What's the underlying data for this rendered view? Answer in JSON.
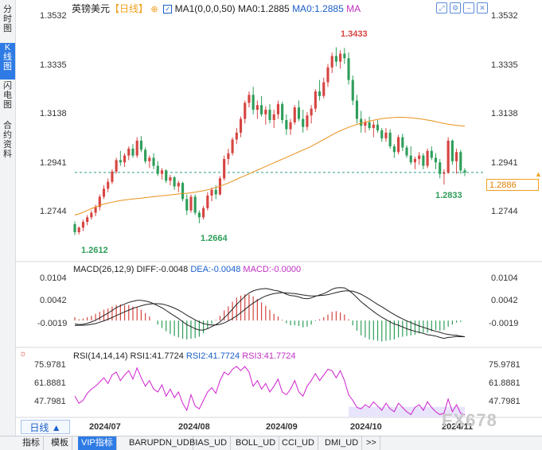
{
  "sidebar": {
    "tabs": [
      {
        "label": "分时图",
        "active": false
      },
      {
        "label": "K线图",
        "active": true
      },
      {
        "label": "闪电图",
        "active": false
      },
      {
        "label": "合约资料",
        "active": false
      }
    ]
  },
  "header": {
    "symbol": "英镑美元",
    "period": "【日线】",
    "period_icon": "circle-plus-icon",
    "ma_checkbox_icon": "checked-box-icon",
    "ma1_label": "MA1(0,0,0,50)",
    "ma0_label": "MA0:1.2885",
    "ma0_value_label": "MA0:1.2885",
    "ma_label": "MA",
    "icons": [
      "expand-icon",
      "settings-icon",
      "minimize-icon",
      "close-icon"
    ]
  },
  "main_chart": {
    "y_ticks": [
      "1.3532",
      "1.3335",
      "1.3138",
      "1.2941",
      "1.2744"
    ],
    "annotations": {
      "high": "1.3433",
      "low1": "1.2612",
      "low2": "1.2664",
      "low3": "1.2833"
    },
    "current_price": "1.2886"
  },
  "macd": {
    "label": "MACD(26,12,9)",
    "diff": "DIFF:-0.0048",
    "dea": "DEA:-0.0048",
    "macd": "MACD:-0.0000",
    "y_ticks": [
      "0.0104",
      "0.0042",
      "-0.0019"
    ]
  },
  "rsi": {
    "label": "RSI(14,14,14)",
    "rsi1": "RSI1:41.7724",
    "rsi2": "RSI2:41.7724",
    "rsi3": "RSI3:41.7724",
    "y_ticks": [
      "75.9781",
      "61.8881",
      "47.7981"
    ]
  },
  "x_ticks": [
    "2024/07",
    "2024/08",
    "2024/09",
    "2024/10",
    "2024/11"
  ],
  "period_button": "日线 ▲",
  "watermark": "FX678",
  "bottom_tabs": [
    {
      "label": "指标",
      "active": false
    },
    {
      "label": "模板",
      "active": false
    },
    {
      "label": "VIP指标",
      "active": true
    },
    {
      "label": "BARUPDN_UD",
      "active": false
    },
    {
      "label": "BIAS_UD",
      "active": false
    },
    {
      "label": "BOLL_UD",
      "active": false
    },
    {
      "label": "CCI_UD",
      "active": false
    },
    {
      "label": "DMI_UD",
      "active": false
    },
    {
      "label": ">>",
      "active": false
    }
  ],
  "colors": {
    "up": "#d64541",
    "down": "#2e9e5a",
    "ma": "#e8901a",
    "rsi": "#d020d0",
    "macd_diff": "#222222",
    "macd_dea": "#222222"
  },
  "chart_data": {
    "type": "candlestick",
    "title": "英镑美元【日线】",
    "ylim": [
      1.258,
      1.357
    ],
    "ohlc": [
      [
        1.266,
        1.2672,
        1.2612,
        1.2625
      ],
      [
        1.2625,
        1.265,
        1.2615,
        1.2645
      ],
      [
        1.2645,
        1.268,
        1.263,
        1.267
      ],
      [
        1.267,
        1.27,
        1.2655,
        1.269
      ],
      [
        1.269,
        1.272,
        1.268,
        1.271
      ],
      [
        1.271,
        1.2745,
        1.2695,
        1.2735
      ],
      [
        1.2735,
        1.279,
        1.272,
        1.278
      ],
      [
        1.278,
        1.283,
        1.277,
        1.2815
      ],
      [
        1.2815,
        1.286,
        1.28,
        1.2845
      ],
      [
        1.2845,
        1.29,
        1.2835,
        1.289
      ],
      [
        1.289,
        1.295,
        1.288,
        1.294
      ],
      [
        1.294,
        1.298,
        1.2915,
        1.293
      ],
      [
        1.293,
        1.297,
        1.291,
        1.296
      ],
      [
        1.296,
        1.3,
        1.294,
        1.299
      ],
      [
        1.299,
        1.301,
        1.295,
        1.296
      ],
      [
        1.296,
        1.304,
        1.295,
        1.3025
      ],
      [
        1.3025,
        1.3045,
        1.2975,
        1.2985
      ],
      [
        1.2985,
        1.2995,
        1.2925,
        1.2935
      ],
      [
        1.2935,
        1.296,
        1.2905,
        1.295
      ],
      [
        1.295,
        1.297,
        1.29,
        1.2915
      ],
      [
        1.2915,
        1.2935,
        1.287,
        1.288
      ],
      [
        1.288,
        1.2905,
        1.2855,
        1.2895
      ],
      [
        1.2895,
        1.29,
        1.284,
        1.285
      ],
      [
        1.285,
        1.2875,
        1.283,
        1.2865
      ],
      [
        1.2865,
        1.287,
        1.281,
        1.2825
      ],
      [
        1.2825,
        1.285,
        1.28,
        1.284
      ],
      [
        1.284,
        1.2845,
        1.276,
        1.277
      ],
      [
        1.277,
        1.279,
        1.27,
        1.272
      ],
      [
        1.272,
        1.279,
        1.271,
        1.278
      ],
      [
        1.278,
        1.279,
        1.27,
        1.271
      ],
      [
        1.271,
        1.272,
        1.2664,
        1.269
      ],
      [
        1.269,
        1.274,
        1.268,
        1.273
      ],
      [
        1.273,
        1.28,
        1.272,
        1.2785
      ],
      [
        1.2785,
        1.282,
        1.276,
        1.281
      ],
      [
        1.281,
        1.283,
        1.277,
        1.279
      ],
      [
        1.279,
        1.287,
        1.2785,
        1.286
      ],
      [
        1.286,
        1.296,
        1.285,
        1.2945
      ],
      [
        1.2945,
        1.299,
        1.292,
        1.297
      ],
      [
        1.297,
        1.304,
        1.296,
        1.303
      ],
      [
        1.303,
        1.308,
        1.301,
        1.306
      ],
      [
        1.306,
        1.313,
        1.304,
        1.312
      ],
      [
        1.312,
        1.32,
        1.31,
        1.319
      ],
      [
        1.319,
        1.324,
        1.317,
        1.3225
      ],
      [
        1.3225,
        1.326,
        1.314,
        1.316
      ],
      [
        1.316,
        1.32,
        1.312,
        1.318
      ],
      [
        1.318,
        1.322,
        1.313,
        1.314
      ],
      [
        1.314,
        1.3175,
        1.3095,
        1.316
      ],
      [
        1.316,
        1.3185,
        1.31,
        1.3115
      ],
      [
        1.3115,
        1.316,
        1.308,
        1.314
      ],
      [
        1.314,
        1.32,
        1.312,
        1.3185
      ],
      [
        1.3185,
        1.3195,
        1.31,
        1.3115
      ],
      [
        1.3115,
        1.314,
        1.305,
        1.3075
      ],
      [
        1.3075,
        1.312,
        1.305,
        1.3105
      ],
      [
        1.3105,
        1.318,
        1.3095,
        1.317
      ],
      [
        1.317,
        1.32,
        1.311,
        1.312
      ],
      [
        1.312,
        1.316,
        1.306,
        1.3085
      ],
      [
        1.3085,
        1.315,
        1.307,
        1.3135
      ],
      [
        1.3135,
        1.318,
        1.31,
        1.3165
      ],
      [
        1.3165,
        1.325,
        1.315,
        1.324
      ],
      [
        1.324,
        1.329,
        1.32,
        1.322
      ],
      [
        1.322,
        1.33,
        1.321,
        1.328
      ],
      [
        1.328,
        1.336,
        1.326,
        1.3345
      ],
      [
        1.3345,
        1.341,
        1.332,
        1.3395
      ],
      [
        1.3395,
        1.3433,
        1.335,
        1.337
      ],
      [
        1.337,
        1.342,
        1.334,
        1.3405
      ],
      [
        1.3405,
        1.343,
        1.336,
        1.3385
      ],
      [
        1.3385,
        1.341,
        1.327,
        1.329
      ],
      [
        1.329,
        1.331,
        1.318,
        1.32
      ],
      [
        1.32,
        1.3225,
        1.31,
        1.312
      ],
      [
        1.312,
        1.3155,
        1.306,
        1.309
      ],
      [
        1.309,
        1.312,
        1.306,
        1.3105
      ],
      [
        1.3105,
        1.313,
        1.307,
        1.308
      ],
      [
        1.308,
        1.311,
        1.304,
        1.3095
      ],
      [
        1.3095,
        1.3115,
        1.306,
        1.307
      ],
      [
        1.307,
        1.308,
        1.302,
        1.3035
      ],
      [
        1.3035,
        1.308,
        1.302,
        1.306
      ],
      [
        1.306,
        1.3075,
        1.299,
        1.3
      ],
      [
        1.3,
        1.301,
        1.295,
        1.2975
      ],
      [
        1.2975,
        1.305,
        1.2965,
        1.304
      ],
      [
        1.304,
        1.3055,
        1.298,
        1.2995
      ],
      [
        1.2995,
        1.3005,
        1.295,
        1.296
      ],
      [
        1.296,
        1.3,
        1.292,
        1.293
      ],
      [
        1.293,
        1.2955,
        1.29,
        1.2945
      ],
      [
        1.2945,
        1.2975,
        1.292,
        1.296
      ],
      [
        1.296,
        1.297,
        1.29,
        1.2915
      ],
      [
        1.2915,
        1.299,
        1.2905,
        1.298
      ],
      [
        1.298,
        1.3,
        1.294,
        1.295
      ],
      [
        1.295,
        1.297,
        1.29,
        1.293
      ],
      [
        1.293,
        1.2945,
        1.286,
        1.288
      ],
      [
        1.288,
        1.29,
        1.2833,
        1.2885
      ],
      [
        1.2885,
        1.304,
        1.288,
        1.3025
      ],
      [
        1.3025,
        1.303,
        1.292,
        1.2935
      ],
      [
        1.2935,
        1.299,
        1.288,
        1.2975
      ],
      [
        1.2975,
        1.2985,
        1.288,
        1.2895
      ],
      [
        1.2895,
        1.2905,
        1.287,
        1.2886
      ]
    ],
    "ma50": [
      1.27,
      1.2705,
      1.2712,
      1.272,
      1.2728,
      1.2735,
      1.2742,
      1.2748,
      1.2752,
      1.2756,
      1.276,
      1.2763,
      1.2766,
      1.2768,
      1.277,
      1.2772,
      1.2774,
      1.2776,
      1.2778,
      1.278,
      1.2782,
      1.2784,
      1.2786,
      1.2788,
      1.279,
      1.2792,
      1.2794,
      1.2795,
      1.2797,
      1.28,
      1.2803,
      1.2806,
      1.281,
      1.2815,
      1.282,
      1.2826,
      1.2833,
      1.284,
      1.2848,
      1.2856,
      1.2864,
      1.2872,
      1.288,
      1.2888,
      1.2896,
      1.2904,
      1.2912,
      1.292,
      1.2928,
      1.2936,
      1.2944,
      1.2952,
      1.296,
      1.2968,
      1.2976,
      1.2984,
      1.2992,
      1.3,
      1.301,
      1.302,
      1.303,
      1.304,
      1.305,
      1.306,
      1.3068,
      1.3076,
      1.3083,
      1.309,
      1.3096,
      1.3101,
      1.3106,
      1.311,
      1.3114,
      1.3118,
      1.3121,
      1.3123,
      1.3125,
      1.3126,
      1.3127,
      1.3127,
      1.3126,
      1.3125,
      1.3123,
      1.3121,
      1.3118,
      1.3115,
      1.3112,
      1.3108,
      1.3104,
      1.31,
      1.3097,
      1.3094,
      1.3092,
      1.309,
      1.3088
    ],
    "macd_diff": [
      -0.001,
      -0.0012,
      -0.0011,
      -0.0008,
      -0.0004,
      0.0001,
      0.0008,
      0.0015,
      0.0022,
      0.003,
      0.0038,
      0.0044,
      0.0049,
      0.0054,
      0.0057,
      0.006,
      0.006,
      0.0058,
      0.0055,
      0.005,
      0.0044,
      0.0038,
      0.003,
      0.0022,
      0.0014,
      0.0006,
      -0.0003,
      -0.0012,
      -0.0018,
      -0.0024,
      -0.0028,
      -0.0028,
      -0.0024,
      -0.0018,
      -0.0012,
      -0.0004,
      0.0008,
      0.002,
      0.0034,
      0.0048,
      0.006,
      0.0072,
      0.0082,
      0.0088,
      0.0092,
      0.0094,
      0.0095,
      0.0093,
      0.009,
      0.0088,
      0.0084,
      0.0078,
      0.0074,
      0.0073,
      0.007,
      0.0066,
      0.0065,
      0.0067,
      0.0072,
      0.0076,
      0.008,
      0.0086,
      0.0093,
      0.0097,
      0.0098,
      0.0097,
      0.009,
      0.008,
      0.0068,
      0.0056,
      0.0046,
      0.0036,
      0.0027,
      0.0018,
      0.001,
      0.0003,
      -0.0004,
      -0.001,
      -0.0014,
      -0.0019,
      -0.0024,
      -0.0028,
      -0.0032,
      -0.0035,
      -0.0038,
      -0.0042,
      -0.0044,
      -0.0046,
      -0.005,
      -0.0053,
      -0.005,
      -0.0049,
      -0.0047,
      -0.0048,
      -0.0048
    ],
    "macd_dea": [
      -0.0015,
      -0.0014,
      -0.0014,
      -0.0013,
      -0.0011,
      -0.0009,
      -0.0005,
      -0.0001,
      0.0004,
      0.0009,
      0.0015,
      0.002,
      0.0026,
      0.0031,
      0.0036,
      0.004,
      0.0044,
      0.0047,
      0.0049,
      0.005,
      0.005,
      0.0049,
      0.0046,
      0.0042,
      0.0037,
      0.0031,
      0.0024,
      0.0016,
      0.0009,
      0.0002,
      -0.0004,
      -0.0009,
      -0.0012,
      -0.0013,
      -0.0013,
      -0.0011,
      -0.0007,
      -0.0001,
      0.0006,
      0.0014,
      0.0023,
      0.0033,
      0.0043,
      0.0052,
      0.006,
      0.0067,
      0.0073,
      0.0077,
      0.008,
      0.0082,
      0.0083,
      0.0082,
      0.0081,
      0.008,
      0.0078,
      0.0076,
      0.0074,
      0.0073,
      0.0073,
      0.0074,
      0.0075,
      0.0077,
      0.008,
      0.0083,
      0.0086,
      0.0088,
      0.0088,
      0.0087,
      0.0083,
      0.0078,
      0.0071,
      0.0064,
      0.0056,
      0.0048,
      0.0041,
      0.0033,
      0.0025,
      0.0018,
      0.0011,
      0.0005,
      -0.0001,
      -0.0006,
      -0.0011,
      -0.0016,
      -0.002,
      -0.0024,
      -0.0028,
      -0.0032,
      -0.0035,
      -0.0039,
      -0.0041,
      -0.0043,
      -0.0044,
      -0.0046,
      -0.0048
    ],
    "rsi": [
      55,
      50,
      52,
      57,
      60,
      62,
      65,
      68,
      64,
      70,
      72,
      66,
      70,
      73,
      67,
      75,
      68,
      62,
      66,
      60,
      58,
      63,
      55,
      60,
      54,
      58,
      50,
      45,
      56,
      48,
      46,
      52,
      58,
      61,
      57,
      66,
      72,
      70,
      74,
      76,
      73,
      76,
      72,
      62,
      66,
      60,
      64,
      58,
      62,
      67,
      58,
      56,
      60,
      66,
      58,
      55,
      62,
      66,
      71,
      66,
      70,
      74,
      73,
      68,
      73,
      66,
      56,
      52,
      47,
      46,
      49,
      47,
      51,
      48,
      45,
      50,
      46,
      44,
      50,
      47,
      44,
      42,
      47,
      49,
      45,
      51,
      47,
      44,
      42,
      43,
      53,
      44,
      49,
      43,
      41.77
    ],
    "rsi_ylim": [
      40,
      81
    ],
    "macd_ylim": [
      -0.0068,
      0.0135
    ],
    "x_ticks": [
      "2024/07",
      "2024/08",
      "2024/09",
      "2024/10",
      "2024/11"
    ]
  }
}
